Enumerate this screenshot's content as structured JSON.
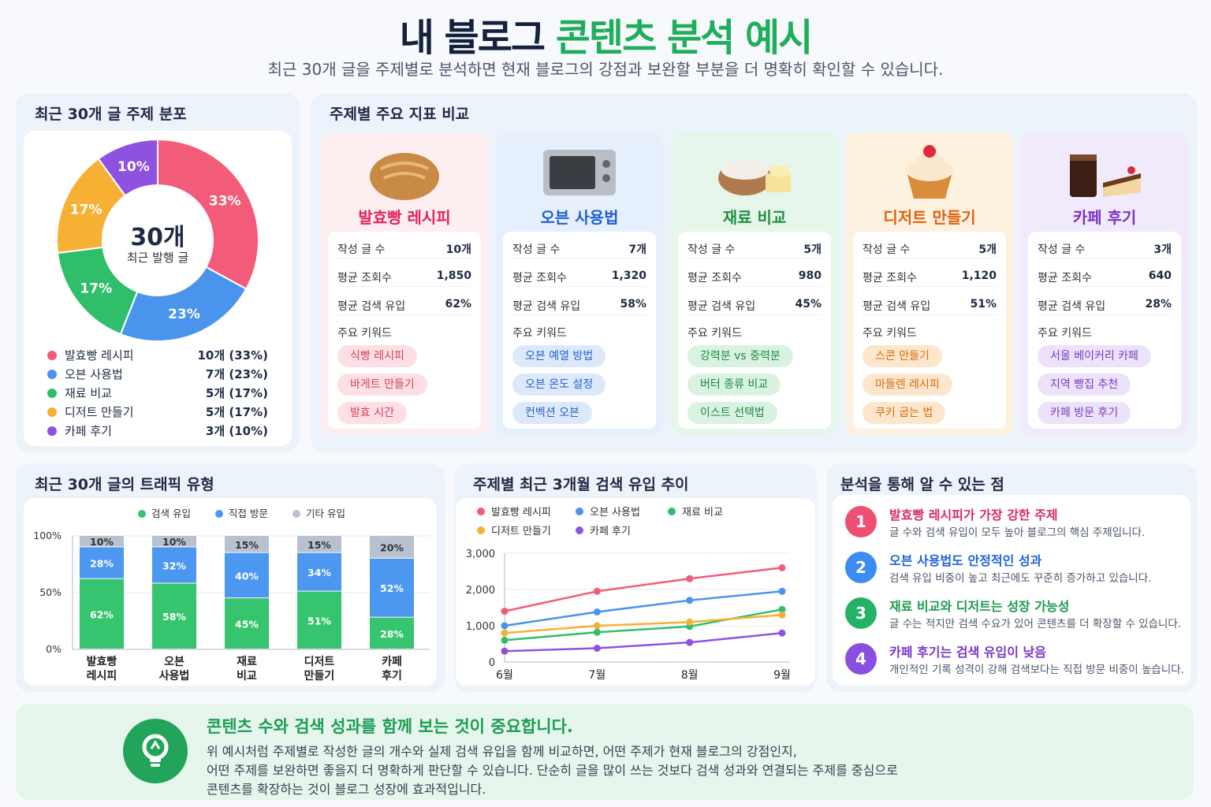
{
  "header": {
    "title_part1": "내 블로그",
    "title_part2": "콘텐츠 분석 예시",
    "subtitle": "최근 30개 글을 주제별로 분석하면 현재 블로그의 강점과 보완할 부분을 더 명확히 확인할 수 있습니다."
  },
  "colors": {
    "red": "#f25c78",
    "blue": "#4a94ee",
    "green": "#2fbf6b",
    "orange": "#f6b135",
    "purple": "#8f52e0"
  },
  "distribution": {
    "title": "최근 30개 글 주제 분포",
    "center_value": "30개",
    "center_label": "최근 발행 글",
    "legend": [
      {
        "label": "발효빵 레시피",
        "value": "10개 (33%)"
      },
      {
        "label": "오븐 사용법",
        "value": "7개 (23%)"
      },
      {
        "label": "재료 비교",
        "value": "5개 (17%)"
      },
      {
        "label": "디저트 만들기",
        "value": "5개 (17%)"
      },
      {
        "label": "카페 후기",
        "value": "3개 (10%)"
      }
    ]
  },
  "comparison": {
    "title": "주제별 주요 지표 비교",
    "labels": {
      "posts": "작성 글 수",
      "views": "평균 조회수",
      "search": "평균 검색 유입",
      "keywords": "주요 키워드"
    },
    "topics": [
      {
        "name": "발효빵 레시피",
        "icon": "bread-icon",
        "posts": "10개",
        "views": "1,850",
        "search": "62%",
        "keywords": [
          "식빵 레시피",
          "바게트 만들기",
          "발효 시간"
        ]
      },
      {
        "name": "오븐 사용법",
        "icon": "oven-icon",
        "posts": "7개",
        "views": "1,320",
        "search": "58%",
        "keywords": [
          "오븐 예열 방법",
          "오븐 온도 설정",
          "컨벡션 오븐"
        ]
      },
      {
        "name": "재료 비교",
        "icon": "flour-butter-icon",
        "posts": "5개",
        "views": "980",
        "search": "45%",
        "keywords": [
          "강력분 vs 중력분",
          "버터 종류 비교",
          "이스트 선택법"
        ]
      },
      {
        "name": "디저트 만들기",
        "icon": "cupcake-icon",
        "posts": "5개",
        "views": "1,120",
        "search": "51%",
        "keywords": [
          "스콘 만들기",
          "마들렌 레시피",
          "쿠키 굽는 법"
        ]
      },
      {
        "name": "카페 후기",
        "icon": "coffee-cake-icon",
        "posts": "3개",
        "views": "640",
        "search": "28%",
        "keywords": [
          "서울 베이커리 카페",
          "지역 빵집 추천",
          "카페 방문 후기"
        ]
      }
    ]
  },
  "traffic": {
    "title": "최근 30개 글의 트래픽 유형"
  },
  "trend": {
    "title": "주제별 최근 3개월 검색 유입 추이"
  },
  "insights": {
    "title": "분석을 통해 알 수 있는 점",
    "items": [
      {
        "num": "1",
        "heading": "발효빵 레시피가 가장 강한 주제",
        "desc": "글 수와 검색 유입이 모두 높아 블로그의 핵심 주제입니다."
      },
      {
        "num": "2",
        "heading": "오븐 사용법도 안정적인 성과",
        "desc": "검색 유입 비중이 높고 최근에도 꾸준히 증가하고 있습니다."
      },
      {
        "num": "3",
        "heading": "재료 비교와 디저트는 성장 가능성",
        "desc": "글 수는 적지만 검색 수요가 있어 콘텐츠를 더 확장할 수 있습니다."
      },
      {
        "num": "4",
        "heading": "카페 후기는 검색 유입이 낮음",
        "desc": "개인적인 기록 성격이 강해 검색보다는 직접 방문 비중이 높습니다."
      }
    ]
  },
  "banner": {
    "title": "콘텐츠 수와 검색 성과를 함께 보는 것이 중요합니다.",
    "lines": [
      "위 예시처럼 주제별로 작성한 글의 개수와 실제 검색 유입을 함께 비교하면, 어떤 주제가 현재 블로그의 강점인지,",
      "어떤 주제를 보완하면 좋을지 더 명확하게 판단할 수 있습니다. 단순히 글을 많이 쓰는 것보다 검색 성과와 연결되는 주제를 중심으로",
      "콘텐츠를 확장하는 것이 블로그 성장에 효과적입니다."
    ]
  },
  "chart_data": [
    {
      "type": "pie",
      "title": "최근 30개 글 주제 분포",
      "labels": [
        "발효빵 레시피",
        "오븐 사용법",
        "재료 비교",
        "디저트 만들기",
        "카페 후기"
      ],
      "values": [
        33,
        23,
        17,
        17,
        10
      ],
      "value_labels": [
        "33%",
        "23%",
        "17%",
        "17%",
        "10%"
      ]
    },
    {
      "type": "bar",
      "stacked": true,
      "title": "최근 30개 글의 트래픽 유형",
      "categories": [
        "발효빵\n레시피",
        "오븐\n사용법",
        "재료\n비교",
        "디저트\n만들기",
        "카페\n후기"
      ],
      "series": [
        {
          "name": "검색 유입",
          "values": [
            62,
            58,
            45,
            51,
            28
          ]
        },
        {
          "name": "직접 방문",
          "values": [
            28,
            32,
            40,
            34,
            52
          ]
        },
        {
          "name": "기타 유입",
          "values": [
            10,
            10,
            15,
            15,
            20
          ]
        }
      ],
      "ylim": [
        0,
        100
      ],
      "yticks": [
        "0%",
        "50%",
        "100%"
      ]
    },
    {
      "type": "line",
      "title": "주제별 최근 3개월 검색 유입 추이",
      "x": [
        "6월",
        "7월",
        "8월",
        "9월"
      ],
      "series": [
        {
          "name": "발효빵 레시피",
          "values": [
            1400,
            1950,
            2300,
            2600
          ]
        },
        {
          "name": "오븐 사용법",
          "values": [
            1000,
            1380,
            1700,
            1950
          ]
        },
        {
          "name": "재료 비교",
          "values": [
            600,
            820,
            980,
            1450
          ]
        },
        {
          "name": "디저트 만들기",
          "values": [
            800,
            1000,
            1100,
            1300
          ]
        },
        {
          "name": "카페 후기",
          "values": [
            300,
            380,
            540,
            800
          ]
        }
      ],
      "ylim": [
        0,
        3000
      ],
      "yticks": [
        "0",
        "1,000",
        "2,000",
        "3,000"
      ]
    }
  ]
}
